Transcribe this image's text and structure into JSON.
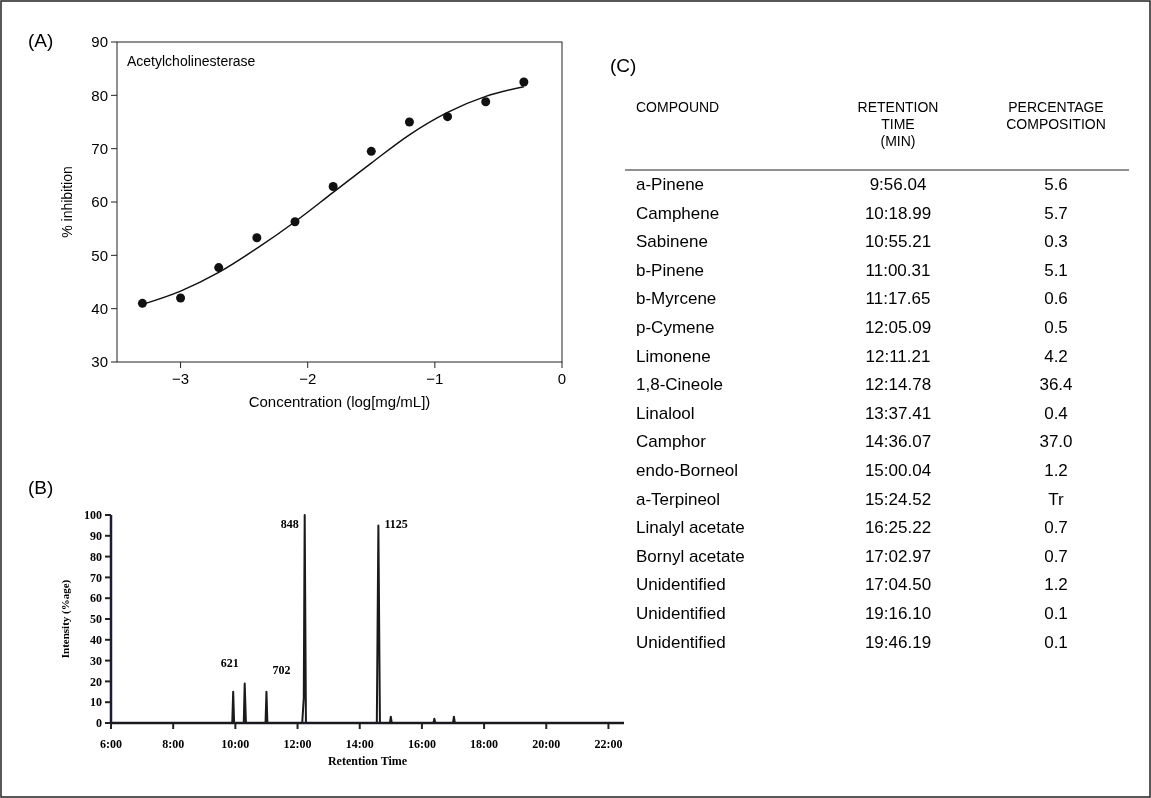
{
  "chart_data": [
    {
      "type": "scatter",
      "title": "(A)",
      "xlabel": "Concentration (log[mg/mL])",
      "ylabel": "% inhibition",
      "annotations": [
        "Acetylcholinesterase"
      ],
      "xlim": [
        -3.5,
        0
      ],
      "xticks": [
        {
          "value": -3,
          "label": "−3"
        },
        {
          "value": -2,
          "label": "−2"
        },
        {
          "value": -1,
          "label": "−1"
        },
        0
      ],
      "ylim": [
        30,
        90
      ],
      "yticks": [
        30,
        40,
        50,
        60,
        70,
        80,
        90
      ],
      "grid": false,
      "series": [
        {
          "type": "scatter",
          "marker": "circle",
          "color": "#111111",
          "x": [
            -3.3,
            -3.0,
            -2.7,
            -2.4,
            -2.1,
            -1.8,
            -1.5,
            -1.2,
            -0.9,
            -0.6,
            -0.3
          ],
          "values": [
            41,
            42,
            47.7,
            53.3,
            56.3,
            62.9,
            69.5,
            75,
            76,
            78.8,
            82.5
          ]
        },
        {
          "type": "line",
          "color": "#111111",
          "x": [
            -3.3,
            -3.0,
            -2.7,
            -2.4,
            -2.1,
            -1.8,
            -1.5,
            -1.2,
            -0.9,
            -0.6,
            -0.3
          ],
          "values": [
            40.8,
            43.3,
            46.8,
            51.3,
            56.3,
            61.8,
            67.3,
            72.6,
            76.8,
            79.8,
            81.6
          ]
        }
      ]
    },
    {
      "type": "line",
      "title": "(B)",
      "xlabel": "Retention Time",
      "ylabel": "Intensity (%age)",
      "xlim": [
        6,
        22.5
      ],
      "xticks": [
        {
          "value": 6,
          "label": "6:00"
        },
        {
          "value": 8,
          "label": "8:00"
        },
        {
          "value": 10,
          "label": "10:00"
        },
        {
          "value": 12,
          "label": "12:00"
        },
        {
          "value": 14,
          "label": "14:00"
        },
        {
          "value": 16,
          "label": "16:00"
        },
        {
          "value": 18,
          "label": "18:00"
        },
        {
          "value": 20,
          "label": "20:00"
        },
        {
          "value": 22,
          "label": "22:00"
        }
      ],
      "ylim": [
        0,
        100
      ],
      "yticks": [
        0,
        10,
        20,
        30,
        40,
        50,
        60,
        70,
        80,
        90,
        100
      ],
      "grid": false,
      "annotations": [
        {
          "text": "621",
          "x": 10.3,
          "y": 20
        },
        {
          "text": "702",
          "x": 11.0,
          "y": 17
        },
        {
          "text": "848",
          "x": 12.23,
          "y": 87
        },
        {
          "text": "1125",
          "x": 14.6,
          "y": 87
        }
      ],
      "series": [
        {
          "color": "#1a1a1a",
          "x": [
            6,
            9.9,
            9.93,
            9.96,
            10.27,
            10.3,
            10.34,
            10.97,
            11.0,
            11.03,
            12.15,
            12.2,
            12.23,
            12.27,
            14.55,
            14.6,
            14.65,
            14.97,
            15.0,
            15.03,
            16.37,
            16.4,
            16.43,
            17.0,
            17.03,
            17.06,
            22.5
          ],
          "values": [
            0,
            0,
            15,
            0,
            0,
            19,
            0,
            0,
            15,
            0,
            0,
            12,
            100,
            0,
            0,
            95,
            0,
            0,
            3,
            0,
            0,
            2,
            0,
            0,
            3,
            0,
            0
          ]
        }
      ]
    },
    {
      "type": "other",
      "title": "(C)",
      "annotations": [
        "COMPOUND",
        "RETENTION TIME (MIN)",
        "PERCENTAGE COMPOSITION",
        "a-Pinene",
        "9:56.04",
        "5.6",
        "Camphene",
        "10:18.99",
        "5.7",
        "Sabinene",
        "10:55.21",
        "0.3",
        "b-Pinene",
        "11:00.31",
        "5.1",
        "b-Myrcene",
        "11:17.65",
        "0.6",
        "p-Cymene",
        "12:05.09",
        "0.5",
        "Limonene",
        "12:11.21",
        "4.2",
        "1,8-Cineole",
        "12:14.78",
        "36.4",
        "Linalool",
        "13:37.41",
        "0.4",
        "Camphor",
        "14:36.07",
        "37.0",
        "endo-Borneol",
        "15:00.04",
        "1.2",
        "a-Terpineol",
        "15:24.52",
        "Tr",
        "Linalyl acetate",
        "16:25.22",
        "0.7",
        "Bornyl acetate",
        "17:02.97",
        "0.7",
        "Unidentified",
        "17:04.50",
        "1.2",
        "Unidentified",
        "19:16.10",
        "0.1",
        "Unidentified",
        "19:46.19",
        "0.1"
      ]
    }
  ]
}
